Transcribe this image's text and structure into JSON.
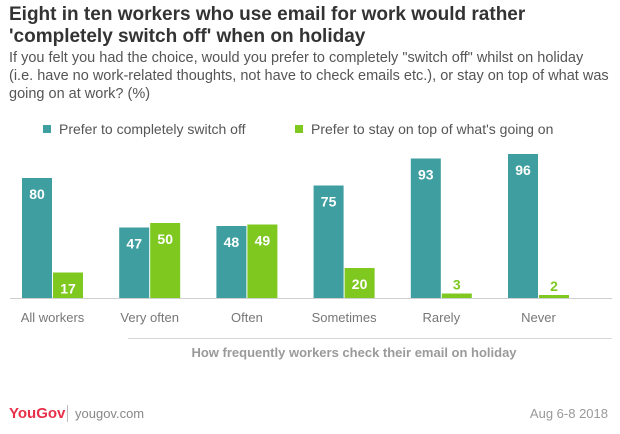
{
  "title": "Eight in ten workers who use email for work would rather 'completely switch off' when on holiday",
  "subtitle": "If you felt you had the choice, would you prefer to completely \"switch off\" whilst on holiday (i.e. have no work-related thoughts, not have to check emails etc.), or stay on top of what was going on at work? (%)",
  "footer": {
    "brand": "YouGov",
    "url": "yougov.com",
    "date": "Aug 6-8 2018"
  },
  "chart_data": {
    "type": "bar",
    "title": "Eight in ten workers who use email for work would rather 'completely switch off' when on holiday",
    "xlabel": "How frequently workers check their email on holiday",
    "ylabel": "",
    "ylim": [
      0,
      100
    ],
    "grid": false,
    "legend_position": "top",
    "categories": [
      "All workers",
      "Very often",
      "Often",
      "Sometimes",
      "Rarely",
      "Never"
    ],
    "series": [
      {
        "name": "Prefer to completely switch off",
        "color": "#3e9ea0",
        "values": [
          80,
          47,
          48,
          75,
          93,
          96
        ]
      },
      {
        "name": "Prefer to stay on top of what's going on",
        "color": "#7ec820",
        "values": [
          17,
          50,
          49,
          20,
          3,
          2
        ]
      }
    ]
  }
}
